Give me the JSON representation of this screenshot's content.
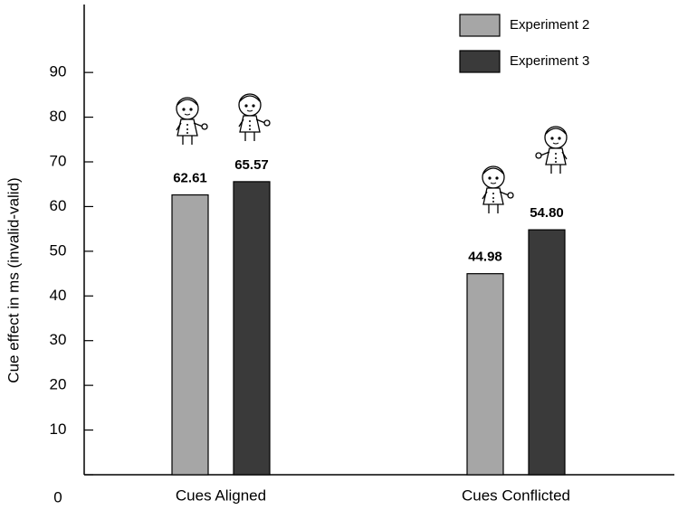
{
  "chart_data": {
    "type": "bar",
    "ylabel": "Cue effect in ms (invalid-valid)",
    "categories": [
      "Cues Aligned",
      "Cues Conflicted"
    ],
    "series": [
      {
        "name": "Experiment 2",
        "color": "#a6a6a6",
        "values": [
          62.61,
          44.98
        ],
        "value_labels": [
          "62.61",
          "44.98"
        ]
      },
      {
        "name": "Experiment 3",
        "color": "#3a3a3a",
        "values": [
          65.57,
          54.8
        ],
        "value_labels": [
          "65.57",
          "54.80"
        ]
      }
    ],
    "ylim": [
      0,
      105
    ],
    "yticks": [
      0,
      10,
      20,
      30,
      40,
      50,
      60,
      70,
      80,
      90
    ]
  }
}
